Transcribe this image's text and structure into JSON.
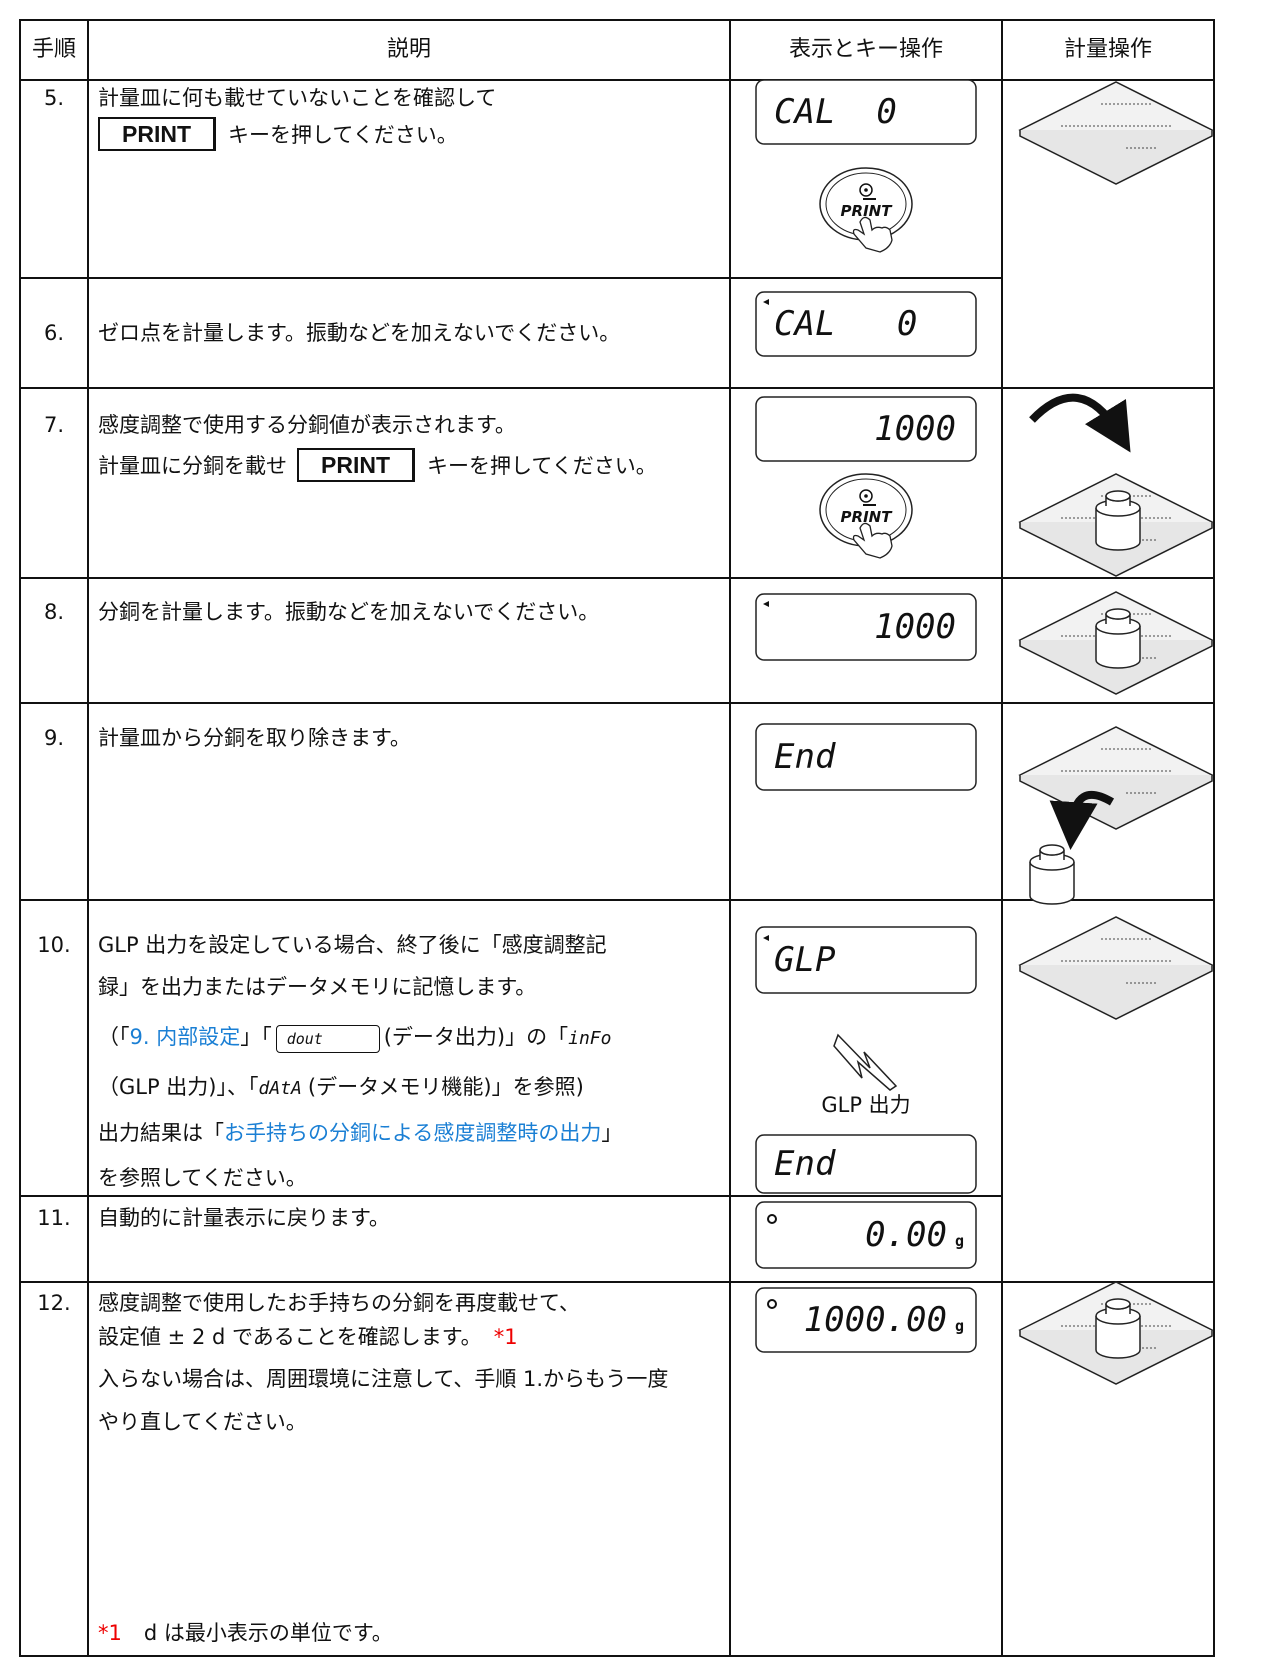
{
  "header": [
    "手順",
    "説明",
    "表示とキー操作",
    "計量操作"
  ],
  "rows": [
    {
      "step": "5.",
      "lines": [
        "計量皿に何も載せていないことを確認して",
        [
          "PRINT",
          "キーを押してください。"
        ]
      ],
      "displays": [
        "CAL  0"
      ],
      "button": "PRINT"
    },
    {
      "step": "6.",
      "lines": [
        "ゼロ点を計量します。振動などを加えないでください。"
      ],
      "displays": [
        "CAL   0"
      ]
    },
    {
      "step": "7.",
      "lines": [
        "感度調整で使用する分銅値が表示されます。",
        [
          "計量皿に分銅を載せ",
          "PRINT",
          "キーを押してください。"
        ]
      ],
      "displays": [
        "1000"
      ],
      "button": "PRINT"
    },
    {
      "step": "8.",
      "lines": [
        "分銅を計量します。振動などを加えないでください。"
      ],
      "displays": [
        "1000"
      ]
    },
    {
      "step": "9.",
      "lines": [
        "計量皿から分銅を取り除きます。"
      ],
      "displays": [
        "End"
      ]
    },
    {
      "step": "10.",
      "lines": [
        "GLP 出力を設定している場合、終了後に「感度調整記",
        "録」を出力またはデータメモリに記憶します。",
        [
          "（「",
          "9. 内部設定",
          "」「",
          "dout",
          "(データ出力)」の「",
          "inFo"
        ],
        [
          "（GLP 出力)」、「",
          "dAtA",
          "(データメモリ機能)」を参照)"
        ],
        [
          "出力結果は「",
          "お手持ちの分銅による感度調整時の出力",
          "」"
        ],
        "を参照してください。"
      ],
      "displays": [
        "GLP",
        "End"
      ],
      "caption": "GLP 出力"
    },
    {
      "step": "11.",
      "lines": [
        "自動的に計量表示に戻ります。"
      ],
      "displays": [
        {
          "value": "0.00",
          "unit": "g"
        }
      ]
    },
    {
      "step": "12.",
      "lines": [
        "感度調整で使用したお手持ちの分銅を再度載せて、",
        [
          "設定値 ± 2 d であることを確認します。",
          "*1"
        ],
        "入らない場合は、周囲環境に注意して、手順 1.からもう一度",
        "やり直してください。"
      ],
      "footnote": [
        "*1",
        "d は最小表示の単位です。"
      ],
      "displays": [
        {
          "value": "1000.00",
          "unit": "g"
        }
      ]
    }
  ]
}
